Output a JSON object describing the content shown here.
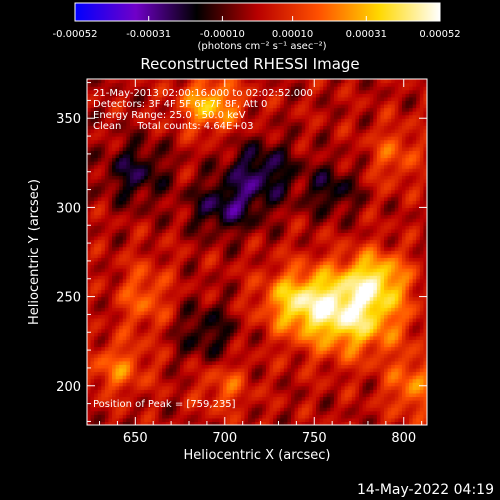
{
  "chart_data": {
    "type": "heatmap",
    "title": "Reconstructed RHESSI Image",
    "xlabel": "Heliocentric X (arcsec)",
    "ylabel": "Heliocentric Y (arcsec)",
    "xlim": [
      623,
      813
    ],
    "ylim": [
      178,
      372
    ],
    "xticks": [
      650,
      700,
      750,
      800
    ],
    "yticks": [
      200,
      250,
      300,
      350
    ],
    "grid": false,
    "annotations": [
      "21-May-2013 02:00:16.000 to 02:02:52.000",
      "Detectors: 3F 4F 5F 6F 7F 8F, Att 0",
      "Energy Range: 25.0 - 50.0 keV",
      "Clean     Total counts: 4.64E+03"
    ],
    "peak_label": "Position of Peak = [759,235]",
    "peak": [
      759,
      235
    ],
    "timestamp": "14-May-2022 04:19",
    "colorbar": {
      "min": -0.00052,
      "max": 0.00052,
      "tick_values": [
        -0.00052,
        -0.00031,
        -0.0001,
        0.0001,
        0.00031,
        0.00052
      ],
      "tick_labels": [
        "-0.00052",
        "-0.00031",
        "-0.00010",
        "0.00010",
        "0.00031",
        "0.00052"
      ],
      "unit_label": "(photons cm⁻² s⁻¹ asec⁻²)",
      "colors": [
        "#0000ff",
        "#7000c8",
        "#000000",
        "#b80000",
        "#ff5000",
        "#ffd800",
        "#ffffff"
      ]
    },
    "sources": [
      {
        "x": 770,
        "y": 242,
        "amp": 0.00046,
        "sx": 20,
        "sy": 16
      },
      {
        "x": 740,
        "y": 248,
        "amp": 0.00028,
        "sx": 14,
        "sy": 12
      },
      {
        "x": 785,
        "y": 262,
        "amp": 0.00026,
        "sx": 12,
        "sy": 10
      },
      {
        "x": 692,
        "y": 358,
        "amp": 0.00032,
        "sx": 12,
        "sy": 10
      },
      {
        "x": 655,
        "y": 250,
        "amp": 0.00018,
        "sx": 10,
        "sy": 14
      },
      {
        "x": 640,
        "y": 210,
        "amp": 0.0002,
        "sx": 12,
        "sy": 10
      },
      {
        "x": 700,
        "y": 200,
        "amp": 0.00016,
        "sx": 10,
        "sy": 10
      },
      {
        "x": 795,
        "y": 330,
        "amp": 0.00016,
        "sx": 10,
        "sy": 12
      },
      {
        "x": 805,
        "y": 200,
        "amp": 0.00022,
        "sx": 10,
        "sy": 12
      },
      {
        "x": 720,
        "y": 320,
        "amp": -0.00024,
        "sx": 14,
        "sy": 12
      },
      {
        "x": 700,
        "y": 300,
        "amp": -0.00022,
        "sx": 14,
        "sy": 10
      },
      {
        "x": 650,
        "y": 320,
        "amp": -0.0002,
        "sx": 12,
        "sy": 12
      },
      {
        "x": 760,
        "y": 310,
        "amp": -0.00018,
        "sx": 10,
        "sy": 10
      },
      {
        "x": 690,
        "y": 230,
        "amp": -0.00016,
        "sx": 12,
        "sy": 12
      }
    ]
  }
}
